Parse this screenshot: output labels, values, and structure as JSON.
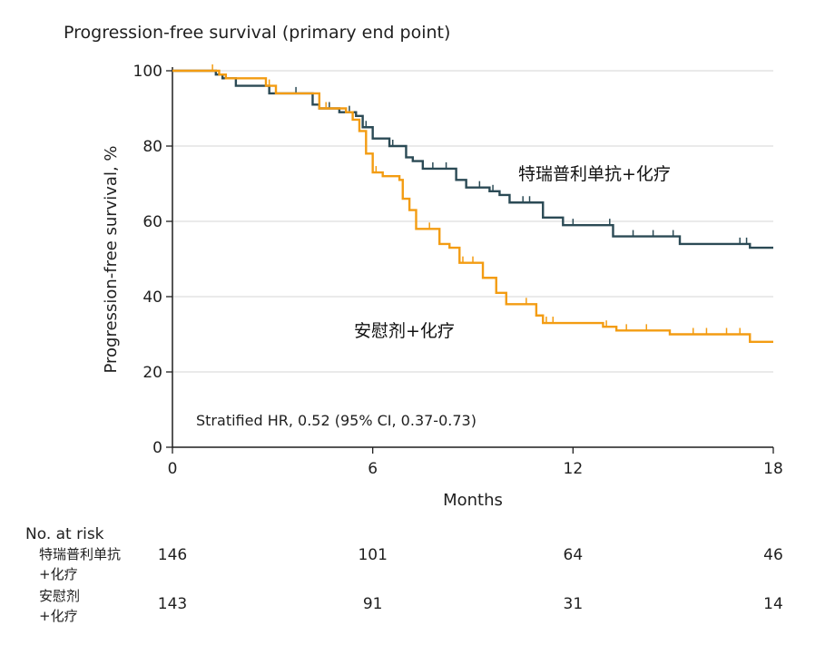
{
  "chart_data": {
    "type": "line",
    "title": "Progression-free survival (primary end point)",
    "xlabel": "Months",
    "ylabel": "Progression-free survival, %",
    "xlim": [
      0,
      18
    ],
    "ylim": [
      0,
      100
    ],
    "x_ticks": [
      0,
      6,
      12,
      18
    ],
    "y_ticks": [
      0,
      20,
      40,
      60,
      80,
      100
    ],
    "grid": "horizontal",
    "annotation": "Stratified HR, 0.52 (95% CI, 0.37-0.73)",
    "series": [
      {
        "name": "特瑞普利单抗+化疗",
        "color": "#2b4a55",
        "x": [
          0,
          1.3,
          1.5,
          1.9,
          2.9,
          3.5,
          4.2,
          4.4,
          5.0,
          5.5,
          5.7,
          6.0,
          6.5,
          7.0,
          7.2,
          7.5,
          8.5,
          8.8,
          9.5,
          9.8,
          10.1,
          11.1,
          11.7,
          13.2,
          15.2,
          17.3,
          18.0
        ],
        "y": [
          100,
          99,
          98,
          96,
          94,
          94,
          91,
          90,
          89,
          88,
          85,
          82,
          80,
          77,
          76,
          74,
          71,
          69,
          68,
          67,
          65,
          61,
          59,
          56,
          54,
          53,
          53
        ],
        "censor_x": [
          2.8,
          3.1,
          3.7,
          4.7,
          5.3,
          5.8,
          6.6,
          7.8,
          8.2,
          9.2,
          9.6,
          10.5,
          10.7,
          12.0,
          13.1,
          13.8,
          14.4,
          15.0,
          17.0,
          17.2
        ]
      },
      {
        "name": "安慰剂+化疗",
        "color": "#f39c12",
        "x": [
          0,
          1.4,
          1.6,
          2.8,
          3.1,
          4.1,
          4.4,
          5.2,
          5.4,
          5.6,
          5.8,
          6.0,
          6.3,
          6.8,
          6.9,
          7.1,
          7.3,
          8.0,
          8.3,
          8.6,
          9.3,
          9.7,
          10.0,
          10.9,
          11.1,
          12.9,
          13.3,
          14.9,
          17.3,
          18.0
        ],
        "y": [
          100,
          99,
          98,
          96,
          94,
          94,
          90,
          89,
          87,
          84,
          78,
          73,
          72,
          71,
          66,
          63,
          58,
          54,
          53,
          49,
          45,
          41,
          38,
          35,
          33,
          32,
          31,
          30,
          28,
          28
        ],
        "censor_x": [
          1.2,
          2.9,
          4.6,
          6.1,
          7.7,
          8.7,
          9.0,
          10.6,
          11.2,
          11.4,
          13.0,
          13.6,
          14.2,
          15.6,
          16.0,
          16.6,
          17.0
        ]
      }
    ],
    "risk_table": {
      "title": "No. at risk",
      "times": [
        0,
        6,
        12,
        18
      ],
      "rows": [
        {
          "name_line1": "特瑞普利单抗",
          "name_line2": "+化疗",
          "values": [
            "146",
            "101",
            "64",
            "46"
          ]
        },
        {
          "name_line1": "安慰剂",
          "name_line2": "+化疗",
          "values": [
            "143",
            "91",
            "31",
            "14"
          ]
        }
      ]
    }
  }
}
